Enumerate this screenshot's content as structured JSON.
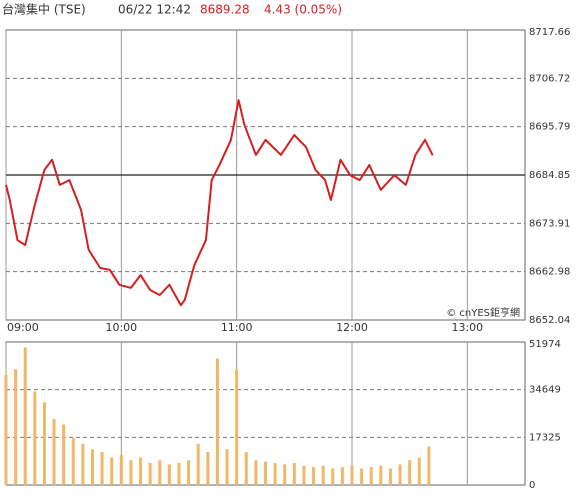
{
  "header": {
    "name": "台灣集中 (TSE)",
    "time": "06/22 12:42",
    "price": "8689.28",
    "change": "4.43 (0.05%)"
  },
  "copyright": "© cnYES鉅亨網",
  "chart_data": [
    {
      "type": "line",
      "color": "#d42020",
      "x": [
        "09:00",
        "09:02",
        "09:06",
        "09:10",
        "09:15",
        "09:20",
        "09:24",
        "09:28",
        "09:33",
        "09:39",
        "09:43",
        "09:49",
        "09:54",
        "09:59",
        "10:05",
        "10:10",
        "10:15",
        "10:20",
        "10:25",
        "10:31",
        "10:33",
        "10:38",
        "10:44",
        "10:47",
        "10:51",
        "10:57",
        "11:01",
        "11:04",
        "11:10",
        "11:15",
        "11:23",
        "11:30",
        "11:36",
        "11:41",
        "11:46",
        "11:49",
        "11:54",
        "11:59",
        "12:04",
        "12:09",
        "12:15",
        "12:22",
        "12:28",
        "12:33",
        "12:38",
        "12:42"
      ],
      "values": [
        8682.6,
        8679.2,
        8670.1,
        8669.0,
        8678.1,
        8686.0,
        8688.3,
        8682.6,
        8683.7,
        8677.0,
        8667.9,
        8663.8,
        8663.4,
        8660.0,
        8659.3,
        8662.2,
        8658.8,
        8657.7,
        8660.0,
        8655.4,
        8656.6,
        8664.5,
        8670.1,
        8683.7,
        8687.1,
        8692.8,
        8701.8,
        8696.2,
        8689.4,
        8692.8,
        8689.4,
        8693.9,
        8691.2,
        8686.0,
        8683.7,
        8679.2,
        8688.3,
        8684.8,
        8683.7,
        8687.1,
        8681.5,
        8684.8,
        8682.6,
        8689.4,
        8692.8,
        8689.3
      ],
      "xlim": [
        "09:00",
        "13:30"
      ],
      "xticks": [
        "09:00",
        "10:00",
        "11:00",
        "12:00",
        "13:00"
      ],
      "ylim": [
        8652.04,
        8717.66
      ],
      "yticks": [
        8652.04,
        8662.98,
        8673.91,
        8684.85,
        8695.79,
        8706.72,
        8717.66
      ],
      "reference_line": 8684.85,
      "grid": true
    },
    {
      "type": "bar",
      "color": "#f2b766",
      "x": [
        "09:00",
        "09:05",
        "09:10",
        "09:15",
        "09:20",
        "09:25",
        "09:30",
        "09:35",
        "09:40",
        "09:45",
        "09:50",
        "09:55",
        "10:00",
        "10:05",
        "10:10",
        "10:15",
        "10:20",
        "10:25",
        "10:30",
        "10:35",
        "10:40",
        "10:45",
        "10:50",
        "10:55",
        "11:00",
        "11:05",
        "11:10",
        "11:15",
        "11:20",
        "11:25",
        "11:30",
        "11:35",
        "11:40",
        "11:45",
        "11:50",
        "11:55",
        "12:00",
        "12:05",
        "12:10",
        "12:15",
        "12:20",
        "12:25",
        "12:30",
        "12:35",
        "12:40"
      ],
      "values": [
        40000,
        42000,
        50000,
        34000,
        30000,
        24000,
        22000,
        17000,
        15000,
        13000,
        12000,
        10000,
        11000,
        9000,
        10000,
        8000,
        9000,
        7500,
        8000,
        9000,
        15000,
        12000,
        46000,
        13000,
        42000,
        12000,
        9000,
        8500,
        8000,
        7500,
        8000,
        7000,
        6500,
        7000,
        6000,
        6500,
        7000,
        6000,
        6500,
        7000,
        6000,
        7500,
        9000,
        10000,
        14000
      ],
      "xlim": [
        "09:00",
        "13:30"
      ],
      "xticks": [
        "09:00",
        "10:00",
        "11:00",
        "12:00",
        "13:00"
      ],
      "ylim": [
        0,
        51974
      ],
      "yticks": [
        0,
        17325,
        34649,
        51974
      ],
      "grid": true
    }
  ]
}
